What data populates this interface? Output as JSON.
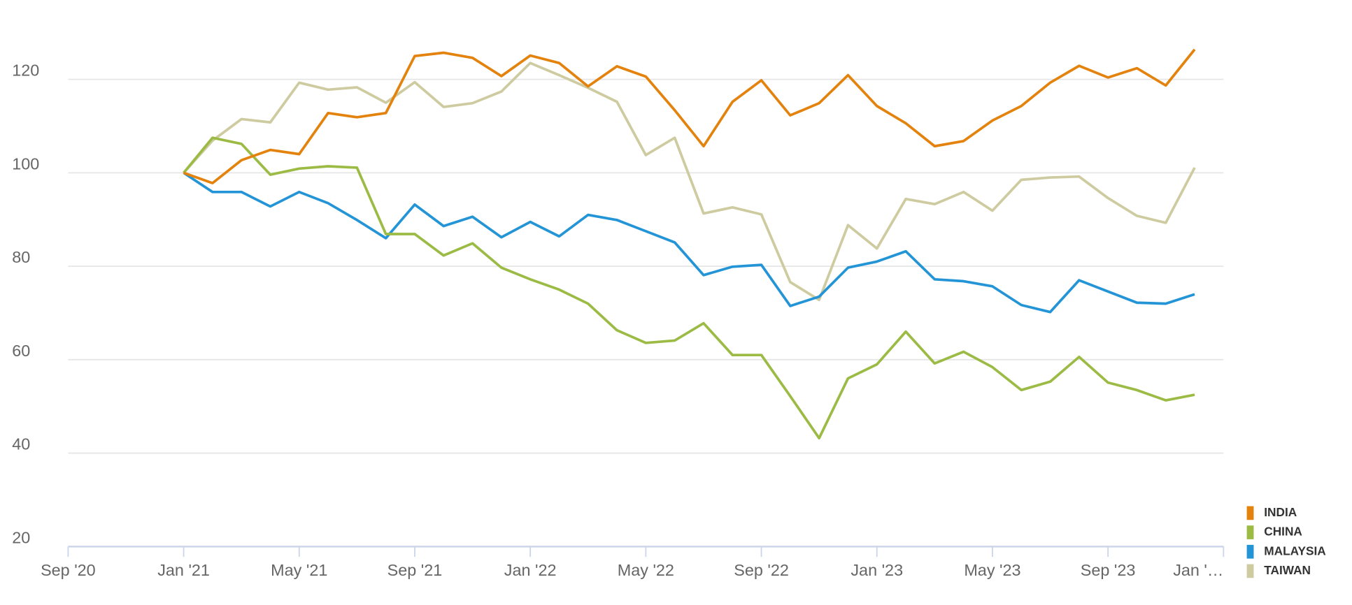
{
  "chart_data": {
    "type": "line",
    "x": [
      "2021-01",
      "2021-02",
      "2021-03",
      "2021-04",
      "2021-05",
      "2021-06",
      "2021-07",
      "2021-08",
      "2021-09",
      "2021-10",
      "2021-11",
      "2021-12",
      "2022-01",
      "2022-02",
      "2022-03",
      "2022-04",
      "2022-05",
      "2022-06",
      "2022-07",
      "2022-08",
      "2022-09",
      "2022-10",
      "2022-11",
      "2022-12",
      "2023-01",
      "2023-02",
      "2023-03",
      "2023-04",
      "2023-05",
      "2023-06",
      "2023-07",
      "2023-08",
      "2023-09",
      "2023-10",
      "2023-11",
      "2023-12"
    ],
    "series": [
      {
        "name": "INDIA",
        "color": "#e3830e",
        "values": [
          100,
          97.8,
          102.7,
          104.9,
          104,
          112.8,
          111.9,
          112.8,
          125,
          125.7,
          124.6,
          120.7,
          125.1,
          123.5,
          118.5,
          122.8,
          120.6,
          113.4,
          105.7,
          115.2,
          119.8,
          112.3,
          114.9,
          120.9,
          114.3,
          110.6,
          105.7,
          106.8,
          111.2,
          114.3,
          119.3,
          122.9,
          120.4,
          122.4,
          118.7,
          126.4
        ]
      },
      {
        "name": "CHINA",
        "color": "#9bbb45",
        "values": [
          100,
          107.5,
          106.2,
          99.6,
          100.9,
          101.4,
          101.1,
          86.9,
          86.9,
          82.3,
          84.9,
          79.7,
          77.2,
          75,
          72,
          66.3,
          63.6,
          64.1,
          67.8,
          61,
          61,
          52.2,
          43.2,
          56,
          59,
          66,
          59.2,
          61.7,
          58.4,
          53.5,
          55.3,
          60.6,
          55.1,
          53.5,
          51.3,
          52.5
        ]
      },
      {
        "name": "MALAYSIA",
        "color": "#2394d6",
        "values": [
          100,
          95.9,
          95.9,
          92.8,
          95.9,
          93.5,
          89.9,
          86,
          93.2,
          88.6,
          90.6,
          86.2,
          89.5,
          86.4,
          91,
          89.9,
          87.5,
          85.1,
          78.1,
          79.9,
          80.3,
          71.5,
          73.5,
          79.7,
          81,
          83.2,
          77.2,
          76.8,
          75.7,
          71.7,
          70.2,
          77,
          74.6,
          72.2,
          72,
          74
        ]
      },
      {
        "name": "TAIWAN",
        "color": "#cdcb9f",
        "values": [
          100,
          106.9,
          111.5,
          110.8,
          119.3,
          117.8,
          118.3,
          115,
          119.4,
          114.1,
          114.9,
          117.4,
          123.5,
          120.9,
          118.2,
          115.2,
          103.8,
          107.5,
          91.3,
          92.6,
          91.1,
          76.6,
          72.8,
          88.8,
          83.8,
          94.4,
          93.3,
          95.9,
          91.9,
          98.5,
          99,
          99.2,
          94.6,
          90.8,
          89.3,
          101.1
        ]
      }
    ],
    "xlim": [
      "2020-09",
      "2024-01"
    ],
    "xticks": [
      {
        "value": "2020-09",
        "label": "Sep '20"
      },
      {
        "value": "2021-01",
        "label": "Jan '21"
      },
      {
        "value": "2021-05",
        "label": "May '21"
      },
      {
        "value": "2021-09",
        "label": "Sep '21"
      },
      {
        "value": "2022-01",
        "label": "Jan '22"
      },
      {
        "value": "2022-05",
        "label": "May '22"
      },
      {
        "value": "2022-09",
        "label": "Sep '22"
      },
      {
        "value": "2023-01",
        "label": "Jan '23"
      },
      {
        "value": "2023-05",
        "label": "May '23"
      },
      {
        "value": "2023-09",
        "label": "Sep '23"
      },
      {
        "value": "2024-01",
        "label": "Jan '…"
      }
    ],
    "ylim": [
      20,
      130
    ],
    "yticks": [
      20,
      40,
      60,
      80,
      100,
      120
    ],
    "grid": true,
    "legend": "bottom-right"
  }
}
